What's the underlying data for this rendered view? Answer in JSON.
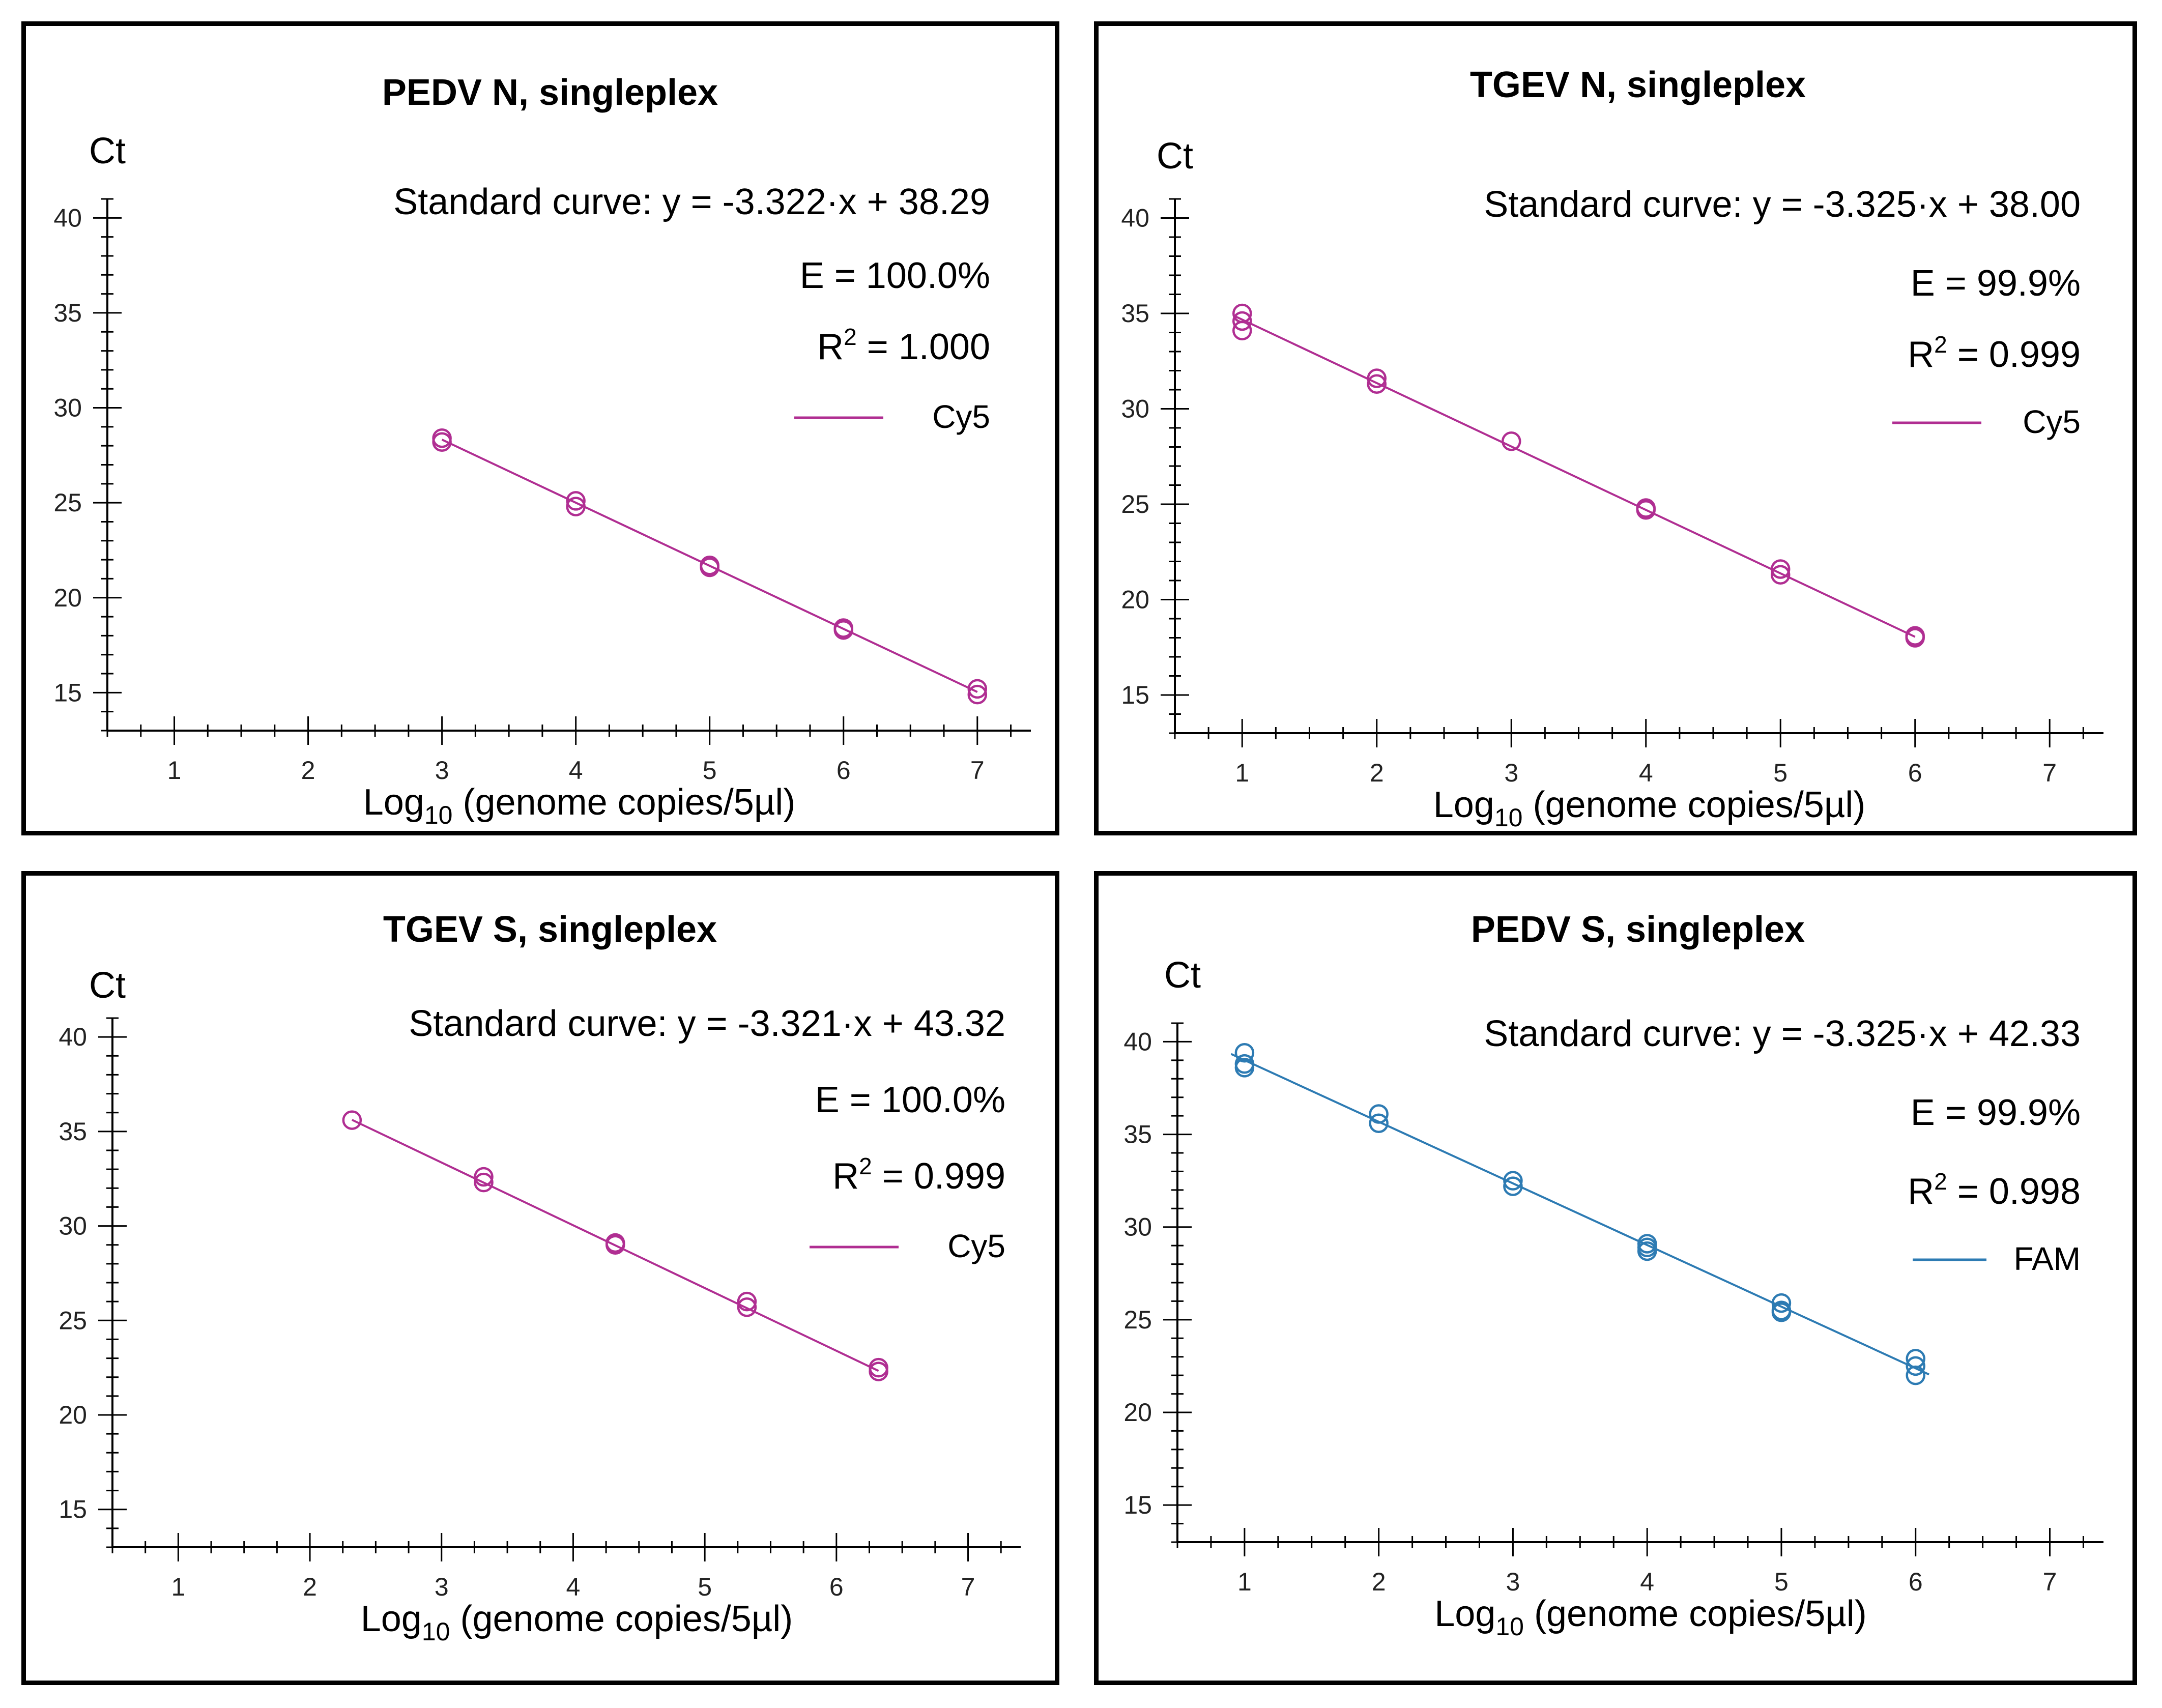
{
  "chart_data": [
    {
      "type": "scatter",
      "title": "PEDV N, singleplex",
      "ylabel": "Ct",
      "xlabel_prefix": "Log",
      "xlabel_sub": "10",
      "xlabel_suffix": " (genome copies/5µl)",
      "equation": "Standard curve: y = -3.322·x + 38.29",
      "efficiency": "E = 100.0%",
      "r2_prefix": "R",
      "r2_sup": "2",
      "r2_suffix": " = 1.000",
      "legend": "Cy5",
      "color": "#b02e92",
      "xlim": [
        0.5,
        7.4
      ],
      "ylim": [
        13,
        41
      ],
      "xticks": [
        1,
        2,
        3,
        4,
        5,
        6,
        7
      ],
      "yticks": [
        15,
        20,
        25,
        30,
        35,
        40
      ],
      "fit": {
        "slope": -3.322,
        "intercept": 38.29,
        "x_start": 3.0,
        "x_end": 7.0
      },
      "points": [
        [
          3,
          28.4
        ],
        [
          3,
          28.2
        ],
        [
          4,
          25.1
        ],
        [
          4,
          24.8
        ],
        [
          5,
          21.7
        ],
        [
          5,
          21.6
        ],
        [
          6,
          18.4
        ],
        [
          6,
          18.3
        ],
        [
          7,
          15.2
        ],
        [
          7,
          14.9
        ]
      ]
    },
    {
      "type": "scatter",
      "title": "TGEV N, singleplex",
      "ylabel": "Ct",
      "xlabel_prefix": "Log",
      "xlabel_sub": "10",
      "xlabel_suffix": " (genome copies/5µl)",
      "equation": "Standard curve: y = -3.325·x + 38.00",
      "efficiency": "E = 99.9%",
      "r2_prefix": "R",
      "r2_sup": "2",
      "r2_suffix": " = 0.999",
      "legend": "Cy5",
      "color": "#b02e92",
      "xlim": [
        0.5,
        7.4
      ],
      "ylim": [
        13,
        41
      ],
      "xticks": [
        1,
        2,
        3,
        4,
        5,
        6,
        7
      ],
      "yticks": [
        15,
        20,
        25,
        30,
        35,
        40
      ],
      "fit": {
        "slope": -3.325,
        "intercept": 38.0,
        "x_start": 0.95,
        "x_end": 6.0
      },
      "points": [
        [
          1,
          35.0
        ],
        [
          1,
          34.6
        ],
        [
          1,
          34.1
        ],
        [
          2,
          31.6
        ],
        [
          2,
          31.3
        ],
        [
          3,
          28.3
        ],
        [
          4,
          24.8
        ],
        [
          4,
          24.7
        ],
        [
          5,
          21.6
        ],
        [
          5,
          21.3
        ],
        [
          6,
          18.0
        ],
        [
          6,
          18.1
        ]
      ]
    },
    {
      "type": "scatter",
      "title": "TGEV S, singleplex",
      "ylabel": "Ct",
      "xlabel_prefix": "Log",
      "xlabel_sub": "10",
      "xlabel_suffix": " (genome copies/5µl)",
      "equation": "Standard curve: y = -3.321·x + 43.32",
      "efficiency": "E = 100.0%",
      "r2_prefix": "R",
      "r2_sup": "2",
      "r2_suffix": " = 0.999",
      "legend": "Cy5",
      "color": "#b02e92",
      "xlim": [
        0.5,
        7.4
      ],
      "ylim": [
        13,
        41
      ],
      "xticks": [
        1,
        2,
        3,
        4,
        5,
        6,
        7
      ],
      "yticks": [
        15,
        20,
        25,
        30,
        35,
        40
      ],
      "fit": {
        "slope": -3.321,
        "intercept": 43.32,
        "x_start": 2.32,
        "x_end": 6.32
      },
      "points": [
        [
          2.32,
          35.6
        ],
        [
          3.32,
          32.6
        ],
        [
          3.32,
          32.3
        ],
        [
          4.32,
          29.1
        ],
        [
          4.32,
          29.0
        ],
        [
          5.32,
          26.0
        ],
        [
          5.32,
          25.7
        ],
        [
          6.32,
          22.5
        ],
        [
          6.32,
          22.3
        ]
      ]
    },
    {
      "type": "scatter",
      "title": "PEDV S, singleplex",
      "ylabel": "Ct",
      "xlabel_prefix": "Log",
      "xlabel_sub": "10",
      "xlabel_suffix": " (genome copies/5µl)",
      "equation": "Standard curve: y = -3.325·x + 42.33",
      "efficiency": "E = 99.9%",
      "r2_prefix": "R",
      "r2_sup": "2",
      "r2_suffix": " = 0.998",
      "legend": "FAM",
      "color": "#2d7bb3",
      "xlim": [
        0.5,
        7.4
      ],
      "ylim": [
        13,
        41
      ],
      "xticks": [
        1,
        2,
        3,
        4,
        5,
        6,
        7
      ],
      "yticks": [
        15,
        20,
        25,
        30,
        35,
        40
      ],
      "fit": {
        "slope": -3.325,
        "intercept": 42.33,
        "x_start": 0.9,
        "x_end": 6.1
      },
      "points": [
        [
          1,
          39.4
        ],
        [
          1,
          38.8
        ],
        [
          1,
          38.6
        ],
        [
          2,
          36.1
        ],
        [
          2,
          35.6
        ],
        [
          3,
          32.5
        ],
        [
          3,
          32.2
        ],
        [
          4,
          29.1
        ],
        [
          4,
          28.9
        ],
        [
          4,
          28.7
        ],
        [
          5,
          25.9
        ],
        [
          5,
          25.5
        ],
        [
          5,
          25.4
        ],
        [
          6,
          22.9
        ],
        [
          6,
          22.5
        ],
        [
          6,
          22.0
        ]
      ]
    }
  ]
}
